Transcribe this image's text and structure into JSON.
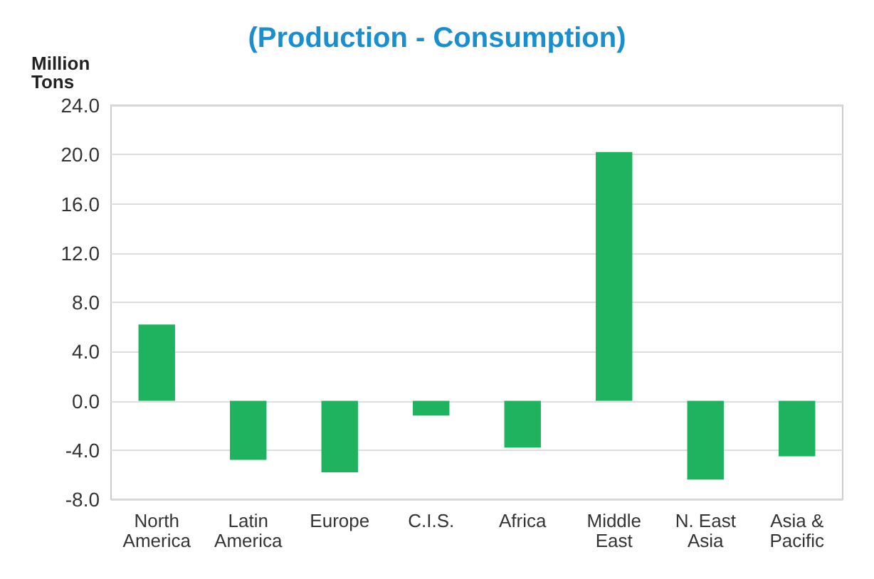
{
  "chart_data": {
    "type": "bar",
    "title": "(Production - Consumption)",
    "ylabel": "Million\nTons",
    "categories": [
      "North\nAmerica",
      "Latin\nAmerica",
      "Europe",
      "C.I.S.",
      "Africa",
      "Middle\nEast",
      "N. East\nAsia",
      "Asia &\nPacific"
    ],
    "values": [
      6.2,
      -4.8,
      -5.8,
      -1.2,
      -3.8,
      20.2,
      -6.4,
      -4.5
    ],
    "color": "#1fb25f",
    "ylim": [
      -8,
      24
    ],
    "yticks": [
      {
        "value": -8,
        "label": "-8.0"
      },
      {
        "value": -4,
        "label": "-4.0"
      },
      {
        "value": 0,
        "label": "0.0"
      },
      {
        "value": 4,
        "label": "4.0"
      },
      {
        "value": 8,
        "label": "8.0"
      },
      {
        "value": 12,
        "label": "12.0"
      },
      {
        "value": 16,
        "label": "16.0"
      },
      {
        "value": 20,
        "label": "20.0"
      },
      {
        "value": 24,
        "label": "24.0"
      }
    ],
    "grid": "y"
  }
}
